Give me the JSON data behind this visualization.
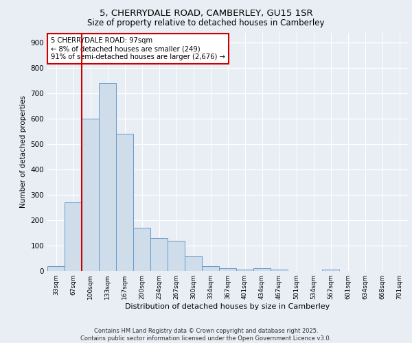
{
  "title_line1": "5, CHERRYDALE ROAD, CAMBERLEY, GU15 1SR",
  "title_line2": "Size of property relative to detached houses in Camberley",
  "xlabel": "Distribution of detached houses by size in Camberley",
  "ylabel": "Number of detached properties",
  "categories": [
    "33sqm",
    "67sqm",
    "100sqm",
    "133sqm",
    "167sqm",
    "200sqm",
    "234sqm",
    "267sqm",
    "300sqm",
    "334sqm",
    "367sqm",
    "401sqm",
    "434sqm",
    "467sqm",
    "501sqm",
    "534sqm",
    "567sqm",
    "601sqm",
    "634sqm",
    "668sqm",
    "701sqm"
  ],
  "values": [
    18,
    270,
    600,
    740,
    540,
    170,
    130,
    120,
    60,
    18,
    10,
    5,
    10,
    5,
    0,
    0,
    5,
    0,
    0,
    0,
    0
  ],
  "bar_color": "#cfdcea",
  "bar_edge_color": "#6699cc",
  "vline_color": "#cc0000",
  "annotation_text": "5 CHERRYDALE ROAD: 97sqm\n← 8% of detached houses are smaller (249)\n91% of semi-detached houses are larger (2,676) →",
  "annotation_box_color": "#ffffff",
  "annotation_box_edge": "#cc0000",
  "background_color": "#e8eef4",
  "plot_background": "#e8eef4",
  "grid_color": "#ffffff",
  "footer_line1": "Contains HM Land Registry data © Crown copyright and database right 2025.",
  "footer_line2": "Contains public sector information licensed under the Open Government Licence v3.0.",
  "ylim": [
    0,
    940
  ],
  "yticks": [
    0,
    100,
    200,
    300,
    400,
    500,
    600,
    700,
    800,
    900
  ]
}
